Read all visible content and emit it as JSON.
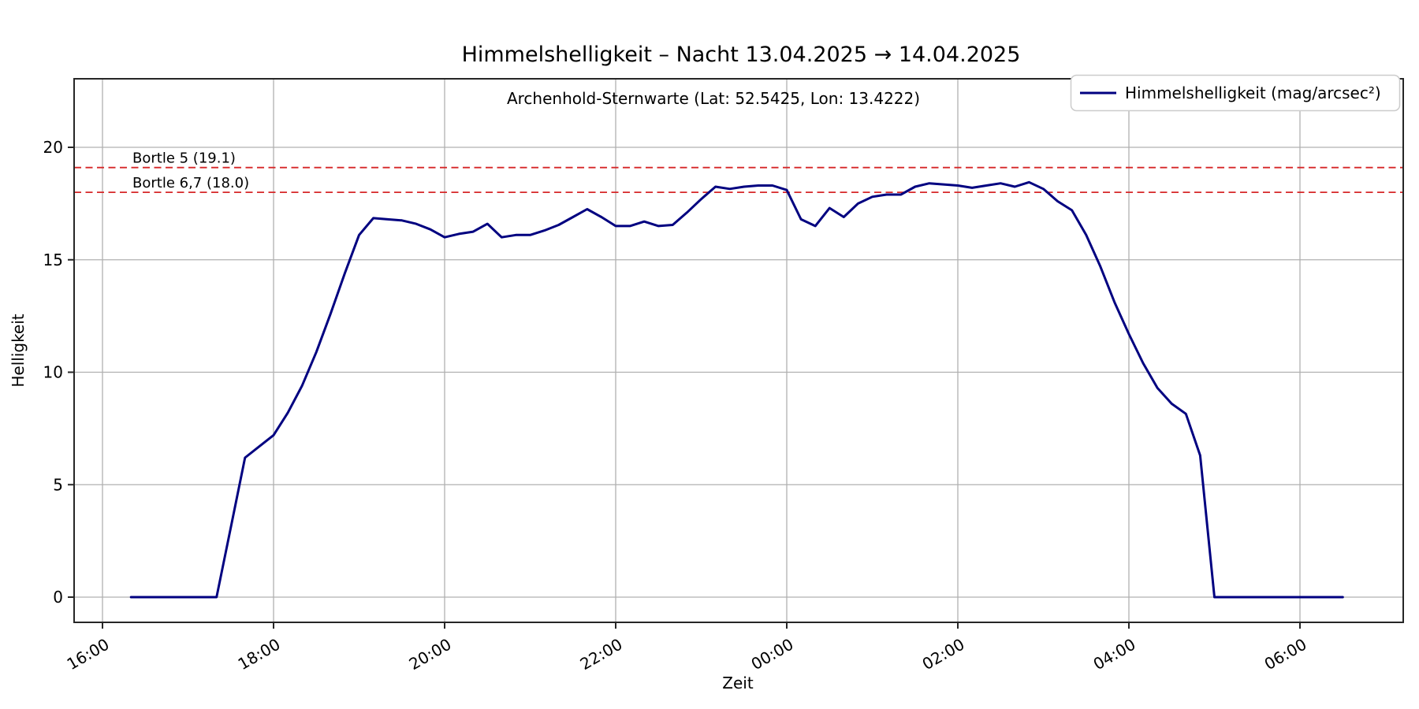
{
  "figure": {
    "title": "Himmelshelligkeit – Nacht 13.04.2025 → 14.04.2025",
    "subtitle": "Archenhold-Sternwarte (Lat: 52.5425, Lon: 13.4222)"
  },
  "colors": {
    "line": "#000080",
    "reference": "#d62728",
    "grid": "#b0b0b0",
    "spine": "#262626",
    "legend_border": "#cccccc"
  },
  "chart_data": {
    "type": "line",
    "title": "Himmelshelligkeit – Nacht 13.04.2025 → 14.04.2025",
    "subtitle": "Archenhold-Sternwarte (Lat: 52.5425, Lon: 13.4222)",
    "xlabel": "Zeit",
    "ylabel": "Helligkeit",
    "x_tick_labels": [
      "16:00",
      "18:00",
      "20:00",
      "22:00",
      "00:00",
      "02:00",
      "04:00",
      "06:00"
    ],
    "y_ticks": [
      0,
      5,
      10,
      15,
      20
    ],
    "ylim": [
      -1.1,
      23.1
    ],
    "grid": true,
    "legend": {
      "position": "upper-right",
      "entries": [
        {
          "label": "Himmelshelligkeit (mag/arcsec²)",
          "color": "#000080"
        }
      ]
    },
    "reference_lines": [
      {
        "label": "Bortle 5 (19.1)",
        "value": 19.1,
        "color": "#d62728",
        "style": "dashed"
      },
      {
        "label": "Bortle 6,7 (18.0)",
        "value": 18.0,
        "color": "#d62728",
        "style": "dashed"
      }
    ],
    "series": [
      {
        "name": "Himmelshelligkeit (mag/arcsec²)",
        "color": "#000080",
        "points": [
          [
            "16:20",
            0
          ],
          [
            "16:30",
            0
          ],
          [
            "16:40",
            0
          ],
          [
            "16:50",
            0
          ],
          [
            "17:00",
            0
          ],
          [
            "17:10",
            0
          ],
          [
            "17:20",
            0
          ],
          [
            "17:30",
            3.1
          ],
          [
            "17:40",
            6.2
          ],
          [
            "17:50",
            6.7
          ],
          [
            "18:00",
            7.2
          ],
          [
            "18:10",
            8.2
          ],
          [
            "18:20",
            9.4
          ],
          [
            "18:30",
            10.9
          ],
          [
            "18:40",
            12.6
          ],
          [
            "18:50",
            14.4
          ],
          [
            "19:00",
            16.1
          ],
          [
            "19:10",
            16.85
          ],
          [
            "19:20",
            16.8
          ],
          [
            "19:30",
            16.75
          ],
          [
            "19:40",
            16.6
          ],
          [
            "19:50",
            16.35
          ],
          [
            "20:00",
            16.0
          ],
          [
            "20:10",
            16.15
          ],
          [
            "20:20",
            16.25
          ],
          [
            "20:30",
            16.6
          ],
          [
            "20:40",
            16.0
          ],
          [
            "20:50",
            16.1
          ],
          [
            "21:00",
            16.1
          ],
          [
            "21:10",
            16.3
          ],
          [
            "21:20",
            16.55
          ],
          [
            "21:30",
            16.9
          ],
          [
            "21:40",
            17.25
          ],
          [
            "21:50",
            16.9
          ],
          [
            "22:00",
            16.5
          ],
          [
            "22:10",
            16.5
          ],
          [
            "22:20",
            16.7
          ],
          [
            "22:30",
            16.5
          ],
          [
            "22:40",
            16.55
          ],
          [
            "22:50",
            17.1
          ],
          [
            "23:00",
            17.7
          ],
          [
            "23:10",
            18.25
          ],
          [
            "23:20",
            18.15
          ],
          [
            "23:30",
            18.25
          ],
          [
            "23:40",
            18.3
          ],
          [
            "23:50",
            18.3
          ],
          [
            "00:00",
            18.1
          ],
          [
            "00:10",
            16.8
          ],
          [
            "00:20",
            16.5
          ],
          [
            "00:30",
            17.3
          ],
          [
            "00:40",
            16.9
          ],
          [
            "00:50",
            17.5
          ],
          [
            "01:00",
            17.8
          ],
          [
            "01:10",
            17.9
          ],
          [
            "01:20",
            17.9
          ],
          [
            "01:30",
            18.25
          ],
          [
            "01:40",
            18.4
          ],
          [
            "01:50",
            18.35
          ],
          [
            "02:00",
            18.3
          ],
          [
            "02:10",
            18.2
          ],
          [
            "02:20",
            18.3
          ],
          [
            "02:30",
            18.4
          ],
          [
            "02:40",
            18.25
          ],
          [
            "02:50",
            18.45
          ],
          [
            "03:00",
            18.15
          ],
          [
            "03:10",
            17.6
          ],
          [
            "03:20",
            17.2
          ],
          [
            "03:30",
            16.1
          ],
          [
            "03:40",
            14.7
          ],
          [
            "03:50",
            13.1
          ],
          [
            "04:00",
            11.7
          ],
          [
            "04:10",
            10.4
          ],
          [
            "04:20",
            9.3
          ],
          [
            "04:30",
            8.6
          ],
          [
            "04:40",
            8.15
          ],
          [
            "04:50",
            6.3
          ],
          [
            "05:00",
            0
          ],
          [
            "05:10",
            0
          ],
          [
            "05:20",
            0
          ],
          [
            "05:30",
            0
          ],
          [
            "05:40",
            0
          ],
          [
            "05:50",
            0
          ],
          [
            "06:00",
            0
          ],
          [
            "06:10",
            0
          ],
          [
            "06:20",
            0
          ],
          [
            "06:30",
            0
          ]
        ]
      }
    ]
  }
}
